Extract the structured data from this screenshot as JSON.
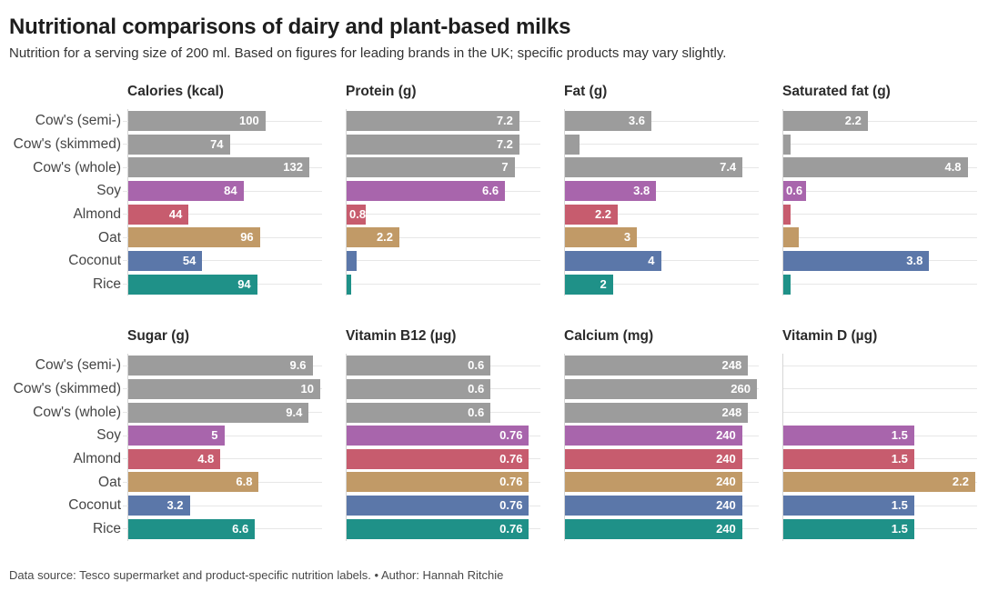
{
  "header": {
    "title": "Nutritional comparisons of dairy and plant-based milks",
    "subtitle": "Nutrition for a serving size of 200 ml. Based on figures for leading brands in the UK; specific products may vary slightly."
  },
  "footer": {
    "text": "Data source: Tesco supermarket and product-specific nutrition labels. • Author: Hannah Ritchie"
  },
  "categories": [
    "Cow's (semi-)",
    "Cow's (skimmed)",
    "Cow's (whole)",
    "Soy",
    "Almond",
    "Oat",
    "Coconut",
    "Rice"
  ],
  "bar_colors": [
    "#9c9c9c",
    "#9c9c9c",
    "#9c9c9c",
    "#a865ac",
    "#c75c6e",
    "#c19a67",
    "#5b77a9",
    "#1f9188"
  ],
  "layout": {
    "charts_per_row": 4,
    "grid": "2x4 small multiples, row labels on first column only",
    "legend": "none"
  },
  "chart_data": [
    {
      "type": "bar",
      "title": "Calories (kcal)",
      "categories": [
        "Cow's (semi-)",
        "Cow's (skimmed)",
        "Cow's (whole)",
        "Soy",
        "Almond",
        "Oat",
        "Coconut",
        "Rice"
      ],
      "values": [
        100,
        74,
        132,
        84,
        44,
        96,
        54,
        94
      ],
      "labels": [
        "100",
        "74",
        "132",
        "84",
        "44",
        "96",
        "54",
        "94"
      ],
      "label_pos": [
        "end",
        "end",
        "end",
        "end",
        "end",
        "end",
        "end",
        "end"
      ],
      "xlim": [
        0,
        140
      ]
    },
    {
      "type": "bar",
      "title": "Protein (g)",
      "categories": [
        "Cow's (semi-)",
        "Cow's (skimmed)",
        "Cow's (whole)",
        "Soy",
        "Almond",
        "Oat",
        "Coconut",
        "Rice"
      ],
      "values": [
        7.2,
        7.2,
        7,
        6.6,
        0.8,
        2.2,
        0.4,
        0.2
      ],
      "labels": [
        "7.2",
        "7.2",
        "7",
        "6.6",
        "0.8",
        "2.2",
        "",
        ""
      ],
      "label_pos": [
        "end",
        "end",
        "end",
        "end",
        "start",
        "end",
        "none",
        "none"
      ],
      "xlim": [
        0,
        8
      ]
    },
    {
      "type": "bar",
      "title": "Fat (g)",
      "categories": [
        "Cow's (semi-)",
        "Cow's (skimmed)",
        "Cow's (whole)",
        "Soy",
        "Almond",
        "Oat",
        "Coconut",
        "Rice"
      ],
      "values": [
        3.6,
        0.6,
        7.4,
        3.8,
        2.2,
        3,
        4,
        2
      ],
      "labels": [
        "3.6",
        "",
        "7.4",
        "3.8",
        "2.2",
        "3",
        "4",
        "2"
      ],
      "label_pos": [
        "end",
        "none",
        "end",
        "end",
        "end",
        "end",
        "end",
        "end"
      ],
      "xlim": [
        0,
        8
      ]
    },
    {
      "type": "bar",
      "title": "Saturated fat (g)",
      "categories": [
        "Cow's (semi-)",
        "Cow's (skimmed)",
        "Cow's (whole)",
        "Soy",
        "Almond",
        "Oat",
        "Coconut",
        "Rice"
      ],
      "values": [
        2.2,
        0.2,
        4.8,
        0.6,
        0.2,
        0.4,
        3.8,
        0.2
      ],
      "labels": [
        "2.2",
        "",
        "4.8",
        "0.6",
        "",
        "",
        "3.8",
        ""
      ],
      "label_pos": [
        "end",
        "none",
        "end",
        "start",
        "none",
        "none",
        "end",
        "none"
      ],
      "xlim": [
        0,
        5
      ]
    },
    {
      "type": "bar",
      "title": "Sugar (g)",
      "categories": [
        "Cow's (semi-)",
        "Cow's (skimmed)",
        "Cow's (whole)",
        "Soy",
        "Almond",
        "Oat",
        "Coconut",
        "Rice"
      ],
      "values": [
        9.6,
        10,
        9.4,
        5,
        4.8,
        6.8,
        3.2,
        6.6
      ],
      "labels": [
        "9.6",
        "10",
        "9.4",
        "5",
        "4.8",
        "6.8",
        "3.2",
        "6.6"
      ],
      "label_pos": [
        "end",
        "end",
        "end",
        "end",
        "end",
        "end",
        "end",
        "end"
      ],
      "xlim": [
        0,
        10
      ]
    },
    {
      "type": "bar",
      "title": "Vitamin B12 (µg)",
      "categories": [
        "Cow's (semi-)",
        "Cow's (skimmed)",
        "Cow's (whole)",
        "Soy",
        "Almond",
        "Oat",
        "Coconut",
        "Rice"
      ],
      "values": [
        0.6,
        0.6,
        0.6,
        0.76,
        0.76,
        0.76,
        0.76,
        0.76
      ],
      "labels": [
        "0.6",
        "0.6",
        "0.6",
        "0.76",
        "0.76",
        "0.76",
        "0.76",
        "0.76"
      ],
      "label_pos": [
        "end",
        "end",
        "end",
        "end",
        "end",
        "end",
        "end",
        "end"
      ],
      "xlim": [
        0,
        0.8
      ]
    },
    {
      "type": "bar",
      "title": "Calcium (mg)",
      "categories": [
        "Cow's (semi-)",
        "Cow's (skimmed)",
        "Cow's (whole)",
        "Soy",
        "Almond",
        "Oat",
        "Coconut",
        "Rice"
      ],
      "values": [
        248,
        260,
        248,
        240,
        240,
        240,
        240,
        240
      ],
      "labels": [
        "248",
        "260",
        "248",
        "240",
        "240",
        "240",
        "240",
        "240"
      ],
      "label_pos": [
        "end",
        "end",
        "end",
        "end",
        "end",
        "end",
        "end",
        "end"
      ],
      "xlim": [
        0,
        260
      ]
    },
    {
      "type": "bar",
      "title": "Vitamin D (µg)",
      "categories": [
        "Cow's (semi-)",
        "Cow's (skimmed)",
        "Cow's (whole)",
        "Soy",
        "Almond",
        "Oat",
        "Coconut",
        "Rice"
      ],
      "values": [
        0,
        0,
        0,
        1.5,
        1.5,
        2.2,
        1.5,
        1.5
      ],
      "labels": [
        "",
        "",
        "",
        "1.5",
        "1.5",
        "2.2",
        "1.5",
        "1.5"
      ],
      "label_pos": [
        "none",
        "none",
        "none",
        "end",
        "end",
        "end",
        "end",
        "end"
      ],
      "xlim": [
        0,
        2.2
      ]
    }
  ]
}
